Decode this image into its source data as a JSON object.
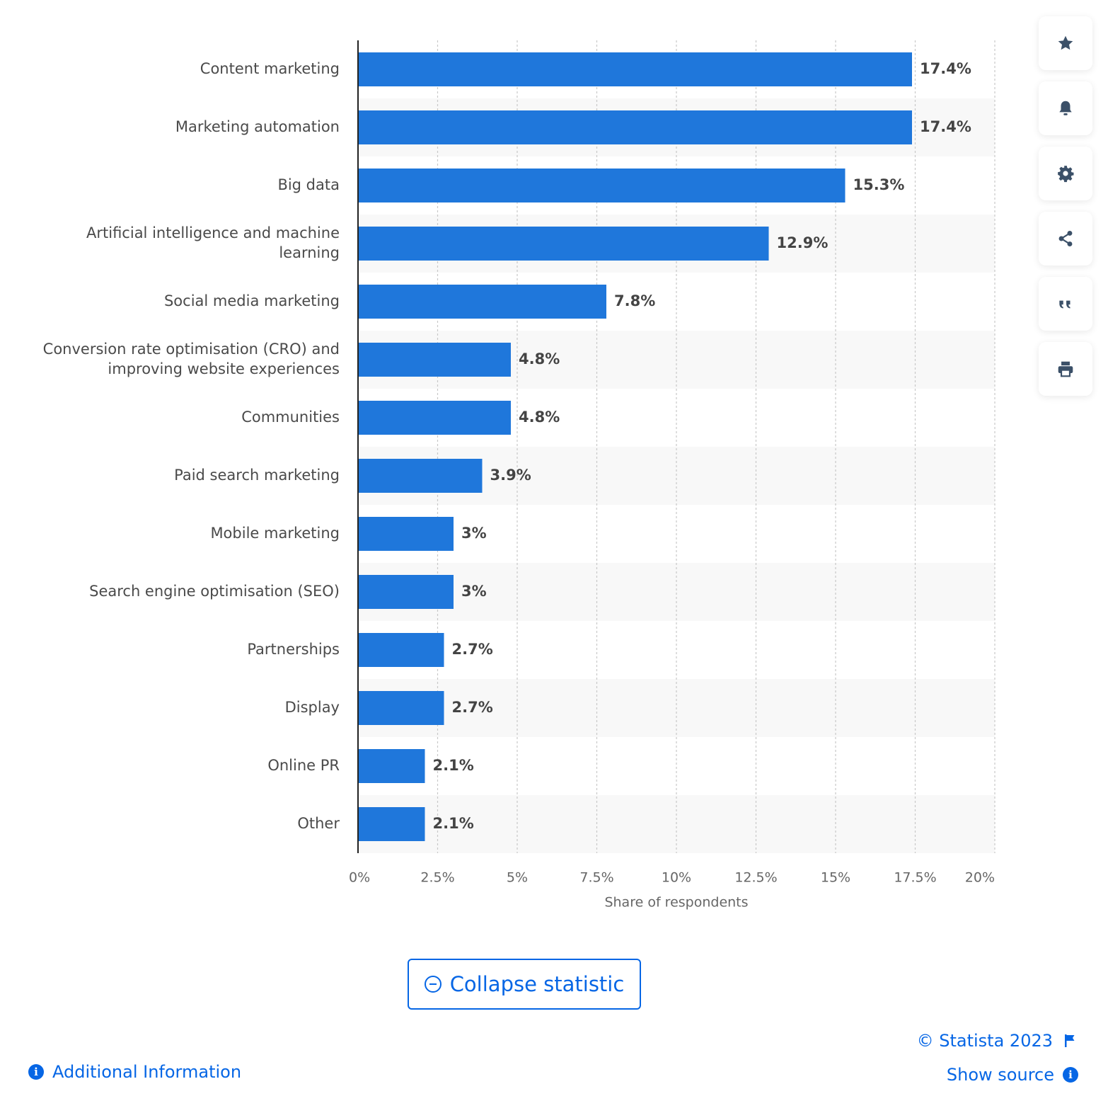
{
  "chart_data": {
    "type": "bar",
    "orientation": "horizontal",
    "categories": [
      "Content marketing",
      "Marketing automation",
      "Big data",
      "Artificial intelligence and machine learning",
      "Social media marketing",
      "Conversion rate optimisation (CRO) and improving website experiences",
      "Communities",
      "Paid search marketing",
      "Mobile marketing",
      "Search engine optimisation (SEO)",
      "Partnerships",
      "Display",
      "Online PR",
      "Other"
    ],
    "category_lines": [
      [
        "Content marketing"
      ],
      [
        "Marketing automation"
      ],
      [
        "Big data"
      ],
      [
        "Artificial intelligence and machine",
        "learning"
      ],
      [
        "Social media marketing"
      ],
      [
        "Conversion rate optimisation (CRO) and",
        "improving website experiences"
      ],
      [
        "Communities"
      ],
      [
        "Paid search marketing"
      ],
      [
        "Mobile marketing"
      ],
      [
        "Search engine optimisation (SEO)"
      ],
      [
        "Partnerships"
      ],
      [
        "Display"
      ],
      [
        "Online PR"
      ],
      [
        "Other"
      ]
    ],
    "values": [
      17.4,
      17.4,
      15.3,
      12.9,
      7.8,
      4.8,
      4.8,
      3.9,
      3,
      3,
      2.7,
      2.7,
      2.1,
      2.1
    ],
    "value_labels": [
      "17.4%",
      "17.4%",
      "15.3%",
      "12.9%",
      "7.8%",
      "4.8%",
      "4.8%",
      "3.9%",
      "3%",
      "3%",
      "2.7%",
      "2.7%",
      "2.1%",
      "2.1%"
    ],
    "xlim": [
      0,
      20
    ],
    "xticks": [
      0,
      2.5,
      5,
      7.5,
      10,
      12.5,
      15,
      17.5,
      20
    ],
    "xtick_labels": [
      "0%",
      "2.5%",
      "5%",
      "7.5%",
      "10%",
      "12.5%",
      "15%",
      "17.5%",
      "20%"
    ],
    "xlabel": "Share of respondents",
    "ylabel": "",
    "title": "",
    "grid": true,
    "bar_color": "#1f77db"
  },
  "toolbar": {
    "icons": [
      "star-icon",
      "bell-icon",
      "gear-icon",
      "share-icon",
      "quote-icon",
      "print-icon"
    ]
  },
  "collapse_label": "Collapse statistic",
  "footer": {
    "additional_info": "Additional Information",
    "copyright": "© Statista 2023",
    "show_source": "Show source"
  },
  "colors": {
    "accent": "#0666e5",
    "bar": "#1f77db",
    "band": "#f8f8f8",
    "text": "#4a4a4a"
  }
}
